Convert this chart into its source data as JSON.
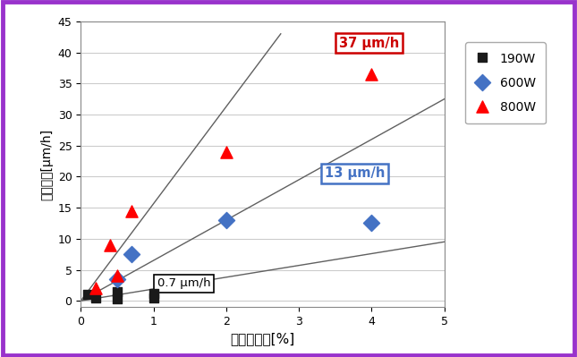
{
  "xlabel": "メタン濃度[%]",
  "ylabel": "成長速度[μm/h]",
  "xlim": [
    0,
    5
  ],
  "ylim": [
    -1,
    45
  ],
  "xticks": [
    0,
    1,
    2,
    3,
    4,
    5
  ],
  "yticks": [
    0,
    5,
    10,
    15,
    20,
    25,
    30,
    35,
    40,
    45
  ],
  "series_190W": {
    "x": [
      0.1,
      0.2,
      0.5,
      0.5,
      1.0,
      1.0
    ],
    "y": [
      1.0,
      0.5,
      0.3,
      1.5,
      1.2,
      0.5
    ],
    "color": "#1a1a1a",
    "marker": "s",
    "label": "190W",
    "size": 55
  },
  "series_600W": {
    "x": [
      0.5,
      0.7,
      2.0,
      4.0
    ],
    "y": [
      3.5,
      7.5,
      13.0,
      12.5
    ],
    "color": "#4472C4",
    "marker": "D",
    "label": "600W",
    "size": 85
  },
  "series_800W": {
    "x": [
      0.2,
      0.4,
      0.5,
      0.7,
      2.0,
      4.0
    ],
    "y": [
      2.0,
      9.0,
      4.0,
      14.5,
      24.0,
      36.5
    ],
    "color": "#FF0000",
    "marker": "^",
    "label": "800W",
    "size": 90
  },
  "line_800W": {
    "x": [
      0,
      2.75
    ],
    "y": [
      0,
      43
    ],
    "color": "#606060",
    "label": "37 μm/h",
    "box_color": "#CC0000",
    "ann_x": 3.55,
    "ann_y": 41.5
  },
  "line_600W": {
    "x": [
      0,
      5
    ],
    "y": [
      0,
      32.5
    ],
    "color": "#606060",
    "label": "13 μm/h",
    "box_color": "#4472C4",
    "ann_x": 3.35,
    "ann_y": 20.5
  },
  "line_190W": {
    "x": [
      0,
      5
    ],
    "y": [
      0,
      9.5
    ],
    "color": "#606060",
    "label": "0.7 μm/h",
    "box_color": "#000000",
    "ann_x": 1.05,
    "ann_y": 2.8
  },
  "border_color": "#9933CC",
  "bg_color": "#FFFFFF",
  "grid_color": "#CCCCCC"
}
